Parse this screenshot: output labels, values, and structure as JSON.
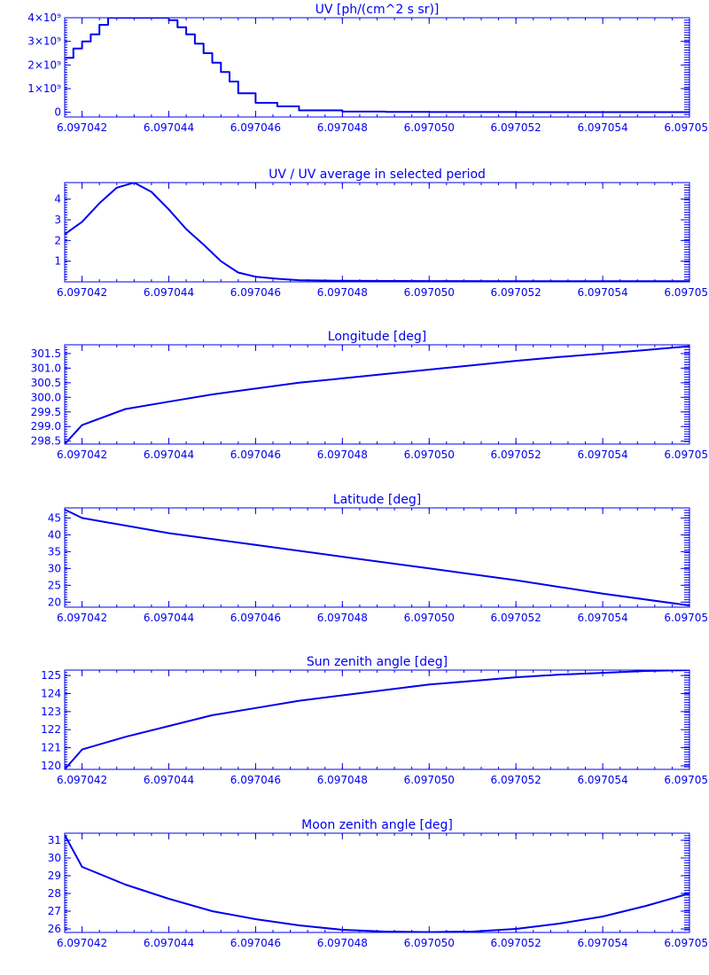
{
  "colors": {
    "line": "#0000ee",
    "background": "#ffffff"
  },
  "chart_data": [
    {
      "type": "line",
      "step": true,
      "title": "UV [ph/(cm^2 s sr)]",
      "xlim": [
        6.0970416,
        6.097056
      ],
      "ylim": [
        -200000000,
        4000000000
      ],
      "x_ticks": [
        6.097042,
        6.097044,
        6.097046,
        6.097048,
        6.09705,
        6.097052,
        6.097054,
        6.097056
      ],
      "x_tick_labels": [
        "6.097042",
        "6.097044",
        "6.097046",
        "6.097048",
        "6.097050",
        "6.097052",
        "6.097054",
        "6.097056"
      ],
      "y_ticks": [
        0,
        1000000000,
        2000000000,
        3000000000,
        4000000000
      ],
      "y_tick_labels": [
        "0",
        "1×10⁹",
        "2×10⁹",
        "3×10⁹",
        "4×10⁹"
      ],
      "x": [
        6.0970416,
        6.0970418,
        6.097042,
        6.0970422,
        6.0970424,
        6.0970426,
        6.0970428,
        6.097043,
        6.0970432,
        6.0970434,
        6.0970436,
        6.0970438,
        6.097044,
        6.0970442,
        6.0970444,
        6.0970446,
        6.0970448,
        6.097045,
        6.0970452,
        6.0970454,
        6.0970456,
        6.097046,
        6.0970465,
        6.097047,
        6.097048,
        6.097049,
        6.09705,
        6.097052,
        6.097054,
        6.097056
      ],
      "y": [
        2300000000,
        2700000000,
        3000000000,
        3300000000,
        3700000000,
        4000000000,
        4000000000,
        4000000000,
        4000000000,
        4000000000,
        4000000000,
        4000000000,
        3900000000,
        3600000000,
        3300000000,
        2900000000,
        2500000000,
        2100000000,
        1700000000,
        1300000000,
        800000000,
        400000000,
        250000000,
        80000000,
        30000000,
        15000000,
        10000000,
        8000000,
        5000000,
        5000000
      ]
    },
    {
      "type": "line",
      "title": "UV / UV average in selected period",
      "xlim": [
        6.0970416,
        6.097056
      ],
      "ylim": [
        0,
        4.8
      ],
      "x_ticks": [
        6.097042,
        6.097044,
        6.097046,
        6.097048,
        6.09705,
        6.097052,
        6.097054,
        6.097056
      ],
      "x_tick_labels": [
        "6.097042",
        "6.097044",
        "6.097046",
        "6.097048",
        "6.097050",
        "6.097052",
        "6.097054",
        "6.097056"
      ],
      "y_ticks": [
        1,
        2,
        3,
        4
      ],
      "y_tick_labels": [
        "1",
        "2",
        "3",
        "4"
      ],
      "x": [
        6.0970416,
        6.097042,
        6.0970424,
        6.0970428,
        6.0970432,
        6.0970436,
        6.097044,
        6.0970444,
        6.0970448,
        6.0970452,
        6.0970456,
        6.097046,
        6.0970465,
        6.097047,
        6.097048,
        6.09705,
        6.097052,
        6.097054,
        6.097056
      ],
      "y": [
        2.3,
        2.9,
        3.8,
        4.55,
        4.8,
        4.35,
        3.5,
        2.55,
        1.8,
        1.0,
        0.45,
        0.25,
        0.15,
        0.08,
        0.05,
        0.04,
        0.03,
        0.03,
        0.03
      ]
    },
    {
      "type": "line",
      "title": "Longitude [deg]",
      "xlim": [
        6.0970416,
        6.097056
      ],
      "ylim": [
        298.4,
        301.8
      ],
      "x_ticks": [
        6.097042,
        6.097044,
        6.097046,
        6.097048,
        6.09705,
        6.097052,
        6.097054,
        6.097056
      ],
      "x_tick_labels": [
        "6.097042",
        "6.097044",
        "6.097046",
        "6.097048",
        "6.097050",
        "6.097052",
        "6.097054",
        "6.097056"
      ],
      "y_ticks": [
        298.5,
        299.0,
        299.5,
        300.0,
        300.5,
        301.0,
        301.5
      ],
      "y_tick_labels": [
        "298.5",
        "299.0",
        "299.5",
        "300.0",
        "300.5",
        "301.0",
        "301.5"
      ],
      "x": [
        6.0970416,
        6.097042,
        6.097043,
        6.097044,
        6.097045,
        6.097046,
        6.097047,
        6.097048,
        6.097049,
        6.09705,
        6.097051,
        6.097052,
        6.097053,
        6.097054,
        6.097055,
        6.097056
      ],
      "y": [
        298.4,
        299.05,
        299.6,
        299.85,
        300.1,
        300.3,
        300.5,
        300.65,
        300.8,
        300.95,
        301.1,
        301.25,
        301.38,
        301.5,
        301.62,
        301.75
      ]
    },
    {
      "type": "line",
      "title": "Latitude [deg]",
      "xlim": [
        6.0970416,
        6.097056
      ],
      "ylim": [
        18.5,
        48
      ],
      "x_ticks": [
        6.097042,
        6.097044,
        6.097046,
        6.097048,
        6.09705,
        6.097052,
        6.097054,
        6.097056
      ],
      "x_tick_labels": [
        "6.097042",
        "6.097044",
        "6.097046",
        "6.097048",
        "6.097050",
        "6.097052",
        "6.097054",
        "6.097056"
      ],
      "y_ticks": [
        20,
        25,
        30,
        35,
        40,
        45
      ],
      "y_tick_labels": [
        "20",
        "25",
        "30",
        "35",
        "40",
        "45"
      ],
      "x": [
        6.0970416,
        6.097042,
        6.097044,
        6.097046,
        6.097048,
        6.09705,
        6.097052,
        6.097054,
        6.097056
      ],
      "y": [
        47.5,
        45.0,
        40.5,
        37.0,
        33.5,
        30.0,
        26.5,
        22.5,
        19.0
      ]
    },
    {
      "type": "line",
      "title": "Sun zenith angle [deg]",
      "xlim": [
        6.0970416,
        6.097056
      ],
      "ylim": [
        119.8,
        125.3
      ],
      "x_ticks": [
        6.097042,
        6.097044,
        6.097046,
        6.097048,
        6.09705,
        6.097052,
        6.097054,
        6.097056
      ],
      "x_tick_labels": [
        "6.097042",
        "6.097044",
        "6.097046",
        "6.097048",
        "6.097050",
        "6.097052",
        "6.097054",
        "6.097056"
      ],
      "y_ticks": [
        120,
        121,
        122,
        123,
        124,
        125
      ],
      "y_tick_labels": [
        "120",
        "121",
        "122",
        "123",
        "124",
        "125"
      ],
      "x": [
        6.0970416,
        6.097042,
        6.097043,
        6.097044,
        6.097045,
        6.097046,
        6.097047,
        6.097048,
        6.097049,
        6.09705,
        6.097051,
        6.097052,
        6.097053,
        6.097054,
        6.097055,
        6.097056
      ],
      "y": [
        119.8,
        120.9,
        121.6,
        122.2,
        122.8,
        123.2,
        123.6,
        123.9,
        124.2,
        124.5,
        124.7,
        124.9,
        125.05,
        125.15,
        125.25,
        125.3
      ]
    },
    {
      "type": "line",
      "title": "Moon zenith angle [deg]",
      "xlim": [
        6.0970416,
        6.097056
      ],
      "ylim": [
        25.8,
        31.4
      ],
      "x_ticks": [
        6.097042,
        6.097044,
        6.097046,
        6.097048,
        6.09705,
        6.097052,
        6.097054,
        6.097056
      ],
      "x_tick_labels": [
        "6.097042",
        "6.097044",
        "6.097046",
        "6.097048",
        "6.097050",
        "6.097052",
        "6.097054",
        "6.097056"
      ],
      "y_ticks": [
        26,
        27,
        28,
        29,
        30,
        31
      ],
      "y_tick_labels": [
        "26",
        "27",
        "28",
        "29",
        "30",
        "31"
      ],
      "x": [
        6.0970416,
        6.097042,
        6.097043,
        6.097044,
        6.097045,
        6.097046,
        6.097047,
        6.097048,
        6.097049,
        6.09705,
        6.097051,
        6.097052,
        6.097053,
        6.097054,
        6.097055,
        6.097056
      ],
      "y": [
        31.3,
        29.5,
        28.5,
        27.7,
        27.0,
        26.55,
        26.2,
        25.95,
        25.85,
        25.82,
        25.85,
        26.0,
        26.3,
        26.7,
        27.3,
        28.0
      ]
    }
  ]
}
